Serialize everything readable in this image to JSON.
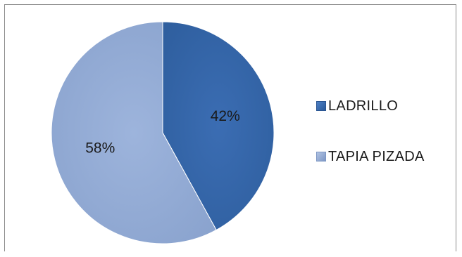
{
  "chart_data": {
    "type": "pie",
    "categories": [
      "LADRILLO",
      "TAPIA PIZADA"
    ],
    "values": [
      42,
      58
    ],
    "labels": [
      "42%",
      "58%"
    ],
    "colors": [
      "#3f6fb3",
      "#98b0d8"
    ],
    "title": "",
    "legend_position": "right"
  }
}
